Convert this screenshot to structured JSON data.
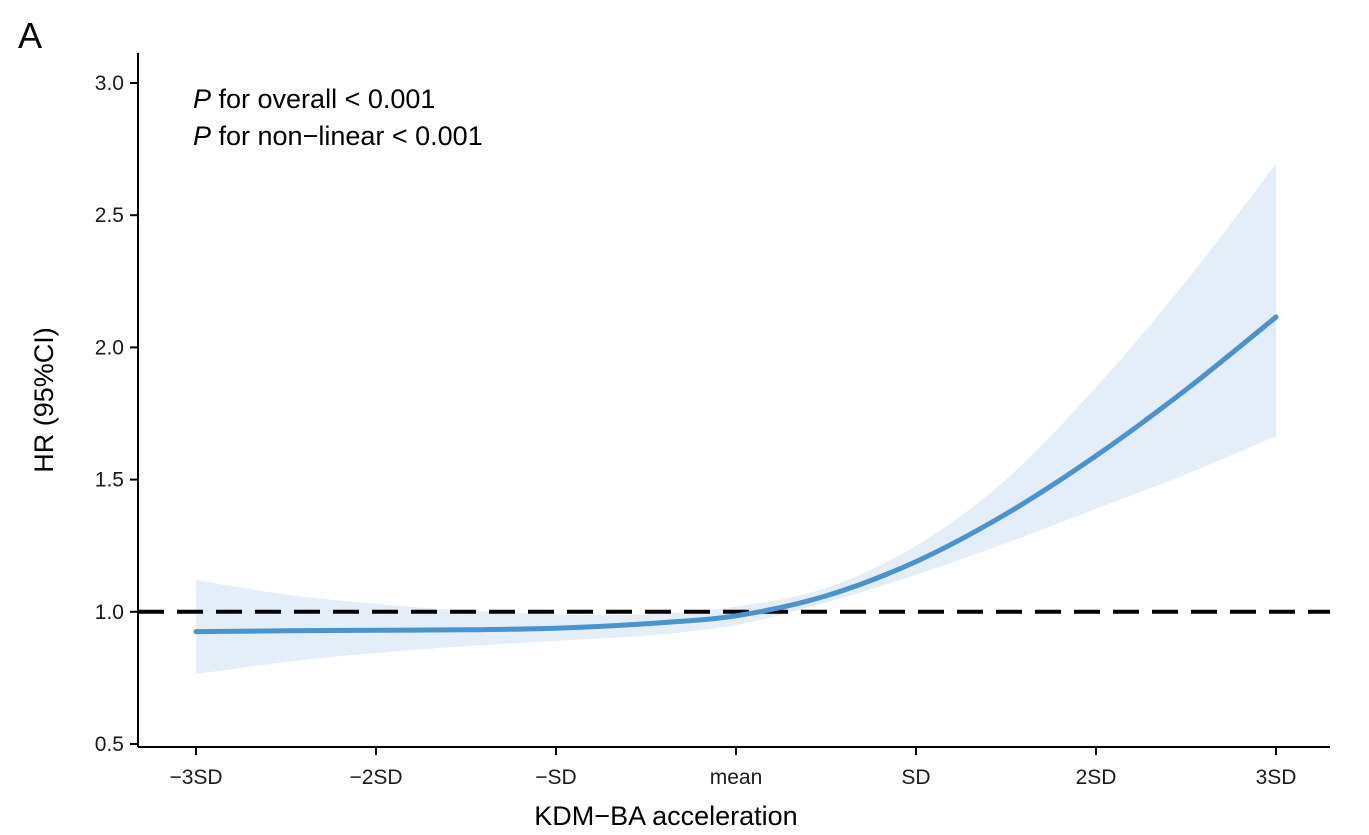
{
  "panel_label": "A",
  "chart_data": {
    "type": "line",
    "xlabel": "KDM−BA acceleration",
    "ylabel": "HR (95%CI)",
    "x_ticks": [
      "−3SD",
      "−2SD",
      "−SD",
      "mean",
      "SD",
      "2SD",
      "3SD"
    ],
    "y_ticks": [
      "0.5",
      "1.0",
      "1.5",
      "2.0",
      "2.5",
      "3.0"
    ],
    "xlim": [
      -3.3,
      3.5
    ],
    "ylim": [
      0.5,
      3.05
    ],
    "reference_line": {
      "y": 1.0,
      "style": "dashed"
    },
    "annotations": [
      {
        "italic": "P",
        "text": " for overall < 0.001"
      },
      {
        "italic": "P",
        "text": " for non−linear < 0.001"
      }
    ],
    "series": [
      {
        "x": [
          -3,
          -2.5,
          -2,
          -1.5,
          -1,
          -0.5,
          0,
          0.5,
          1,
          1.5,
          2,
          2.5,
          3
        ],
        "y": [
          0.925,
          0.928,
          0.93,
          0.932,
          0.938,
          0.955,
          0.985,
          1.06,
          1.19,
          1.37,
          1.59,
          1.84,
          2.115
        ],
        "lower": [
          0.765,
          0.81,
          0.845,
          0.87,
          0.89,
          0.91,
          0.95,
          1.035,
          1.14,
          1.26,
          1.39,
          1.52,
          1.665
        ],
        "upper": [
          1.12,
          1.065,
          1.03,
          1.005,
          0.99,
          0.99,
          1.02,
          1.09,
          1.25,
          1.5,
          1.85,
          2.25,
          2.695
        ],
        "line_color": "#4a93cf",
        "band_color": "#e3eef9"
      }
    ]
  }
}
